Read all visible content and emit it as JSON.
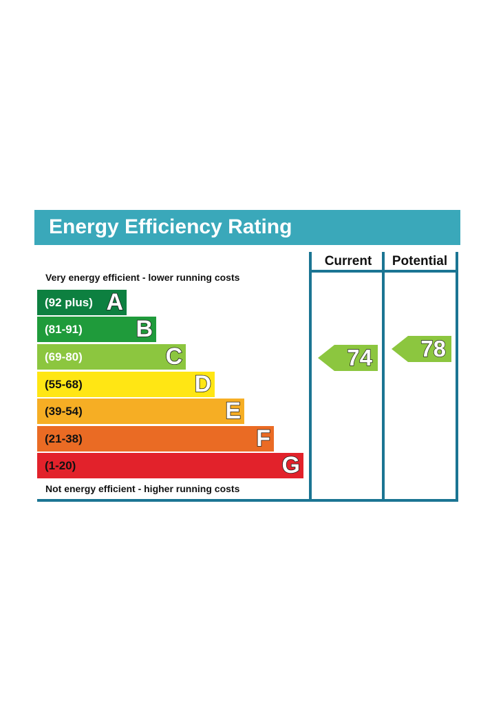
{
  "title": "Energy Efficiency Rating",
  "columns": {
    "current": "Current",
    "potential": "Potential"
  },
  "top_caption": "Very energy efficient - lower running costs",
  "bottom_caption": "Not energy efficient - higher running costs",
  "bands": [
    {
      "letter": "A",
      "range": "(92 plus)",
      "color": "#0d8040"
    },
    {
      "letter": "B",
      "range": "(81-91)",
      "color": "#1f9b3b"
    },
    {
      "letter": "C",
      "range": "(69-80)",
      "color": "#8cc63f"
    },
    {
      "letter": "D",
      "range": "(55-68)",
      "color": "#ffe614"
    },
    {
      "letter": "E",
      "range": "(39-54)",
      "color": "#f6ae24"
    },
    {
      "letter": "F",
      "range": "(21-38)",
      "color": "#ea6b24"
    },
    {
      "letter": "G",
      "range": "(1-20)",
      "color": "#e2222b"
    }
  ],
  "ratings": {
    "current": {
      "value": "74",
      "band": "C",
      "color": "#8cc63f"
    },
    "potential": {
      "value": "78",
      "band": "C",
      "color": "#8cc63f"
    }
  }
}
